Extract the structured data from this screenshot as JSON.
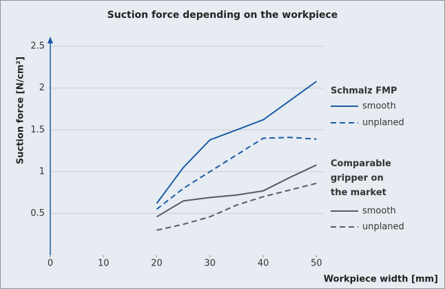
{
  "chart_data": {
    "type": "line",
    "title": "Suction force depending on the workpiece",
    "x_label": "Workpiece width [mm]",
    "y_label": "Suction force [N/cm²]",
    "x": [
      20,
      25,
      30,
      35,
      40,
      45,
      50
    ],
    "xlim": [
      0,
      55
    ],
    "xticks": [
      0,
      10,
      20,
      30,
      40,
      50
    ],
    "ylim": [
      0,
      2.6
    ],
    "yticks": [
      0.5,
      1.0,
      1.5,
      2.0,
      2.5
    ],
    "grid": true,
    "legend_groups": [
      "Schmalz FMP",
      "Comparable gripper on the market"
    ],
    "series": [
      {
        "name": "smooth",
        "group": 0,
        "color": "#1a5aa6",
        "dash": false,
        "values": [
          0.62,
          1.05,
          1.38,
          1.5,
          1.62,
          1.85,
          2.08
        ]
      },
      {
        "name": "unplaned",
        "group": 0,
        "color": "#1a5aa6",
        "dash": true,
        "values": [
          0.55,
          0.8,
          1.0,
          1.2,
          1.4,
          1.41,
          1.39
        ]
      },
      {
        "name": "smooth",
        "group": 1,
        "color": "#555a5f",
        "dash": false,
        "values": [
          0.46,
          0.65,
          0.69,
          0.72,
          0.77,
          0.93,
          1.08
        ]
      },
      {
        "name": "unplaned",
        "group": 1,
        "color": "#555a5f",
        "dash": true,
        "values": [
          0.3,
          0.37,
          0.46,
          0.6,
          0.7,
          0.78,
          0.86
        ]
      }
    ]
  }
}
